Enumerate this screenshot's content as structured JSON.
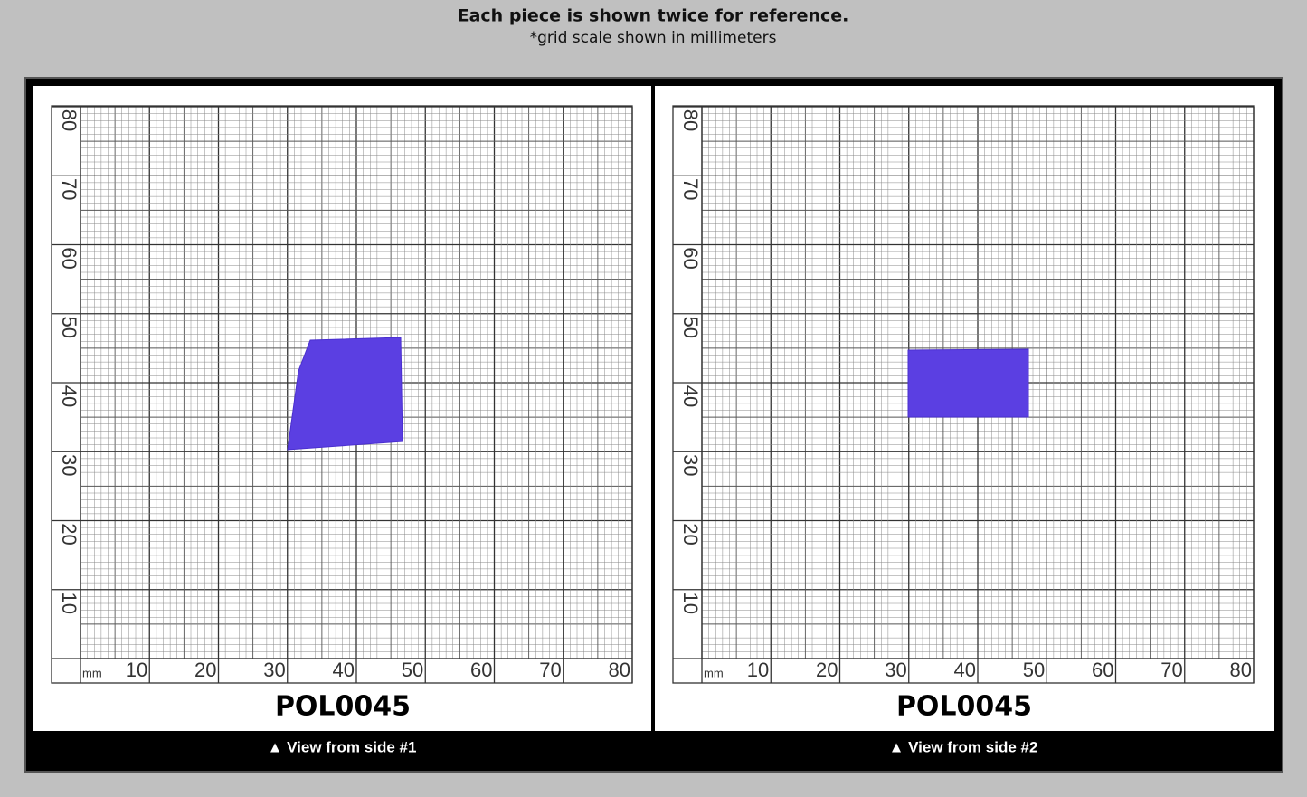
{
  "header": {
    "title": "Each piece is shown twice for reference.",
    "subtitle": "*grid scale shown in millimeters"
  },
  "grid": {
    "unit": "mm",
    "ticks": [
      10,
      20,
      30,
      40,
      50,
      60,
      70,
      80
    ]
  },
  "panels": [
    {
      "label": "POL0045",
      "caption": "▲ View from side #1"
    },
    {
      "label": "POL0045",
      "caption": "▲ View from side #2"
    }
  ]
}
